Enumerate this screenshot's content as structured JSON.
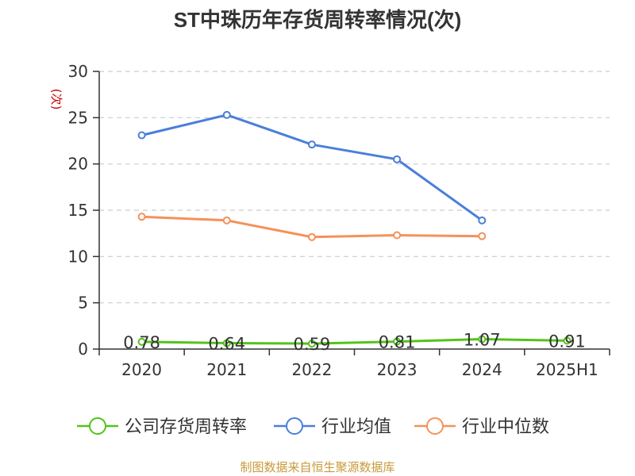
{
  "colors": {
    "background": "#ffffff",
    "text": "#333333",
    "axis": "#333333",
    "grid": "#cccccc",
    "unit_label": "#cc0000",
    "source": "#c79a3a"
  },
  "chart_data": {
    "type": "line",
    "title": "ST中珠历年存货周转率情况(次)",
    "ylabel": "(次)",
    "xlabel": "",
    "categories": [
      "2020",
      "2021",
      "2022",
      "2023",
      "2024",
      "2025H1"
    ],
    "yticks": [
      "0",
      "5",
      "10",
      "15",
      "20",
      "25",
      "30"
    ],
    "ylim": [
      0,
      30
    ],
    "grid": "horizontal dashed",
    "legend_position": "bottom-center",
    "series": [
      {
        "name": "公司存货周转率",
        "color": "#52c41a",
        "values": [
          0.78,
          0.64,
          0.59,
          0.81,
          1.07,
          0.91
        ],
        "data_labels": [
          "0.78",
          "0.64",
          "0.59",
          "0.81",
          "1.07",
          "0.91"
        ]
      },
      {
        "name": "行业均值",
        "color": "#4a7fdb",
        "values": [
          23.1,
          25.3,
          22.1,
          20.5,
          13.9,
          null
        ],
        "data_labels": []
      },
      {
        "name": "行业中位数",
        "color": "#f5915a",
        "values": [
          14.3,
          13.9,
          12.1,
          12.3,
          12.2,
          null
        ],
        "data_labels": []
      }
    ]
  },
  "footer": {
    "source": "制图数据来自恒生聚源数据库"
  }
}
